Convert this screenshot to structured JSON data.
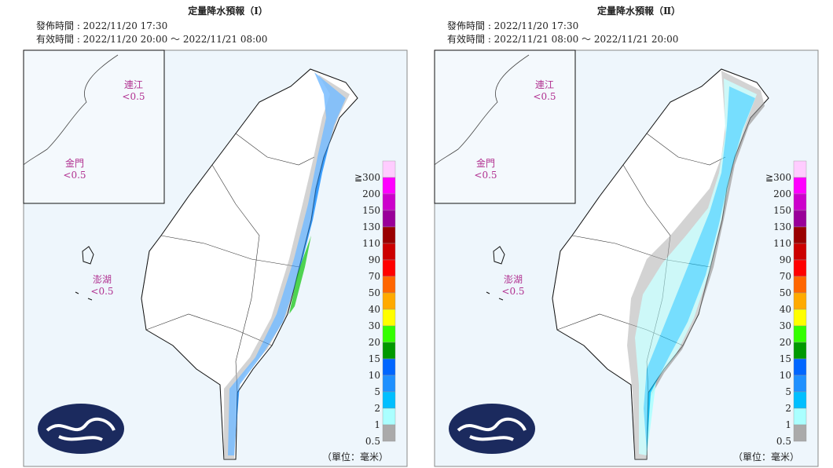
{
  "panels": [
    {
      "title": "定量降水預報（Ⅰ）",
      "issued": "發佈時間 : 2022/11/20 17:30",
      "valid": "有效時間 : 2022/11/20 20:00 ～ 2022/11/21 08:00",
      "islands": [
        {
          "name": "連江",
          "amount": "<0.5"
        },
        {
          "name": "金門",
          "amount": "<0.5"
        },
        {
          "name": "澎湖",
          "amount": "<0.5"
        }
      ]
    },
    {
      "title": "定量降水預報（Ⅱ）",
      "issued": "發佈時間 : 2022/11/20 17:30",
      "valid": "有效時間 : 2022/11/21 08:00 ～ 2022/11/21 20:00",
      "islands": [
        {
          "name": "連江",
          "amount": "<0.5"
        },
        {
          "name": "金門",
          "amount": "<0.5"
        },
        {
          "name": "澎湖",
          "amount": "<0.5"
        }
      ]
    }
  ],
  "legend": [
    {
      "label": "≧300",
      "color": "#ffccff"
    },
    {
      "label": "200",
      "color": "#ff00ff"
    },
    {
      "label": "150",
      "color": "#cc00cc"
    },
    {
      "label": "130",
      "color": "#990099"
    },
    {
      "label": "110",
      "color": "#990000"
    },
    {
      "label": "90",
      "color": "#cc0000"
    },
    {
      "label": "70",
      "color": "#ff0000"
    },
    {
      "label": "50",
      "color": "#ff6600"
    },
    {
      "label": "40",
      "color": "#ffaa00"
    },
    {
      "label": "30",
      "color": "#ffff00"
    },
    {
      "label": "20",
      "color": "#33ff00"
    },
    {
      "label": "15",
      "color": "#009900"
    },
    {
      "label": "10",
      "color": "#0066ff"
    },
    {
      "label": "5",
      "color": "#1e90ff"
    },
    {
      "label": "2",
      "color": "#00bfff"
    },
    {
      "label": "1",
      "color": "#aaffff"
    },
    {
      "label": "0.5",
      "color": "#aaaaaa"
    }
  ],
  "unit": "（單位：毫米）"
}
